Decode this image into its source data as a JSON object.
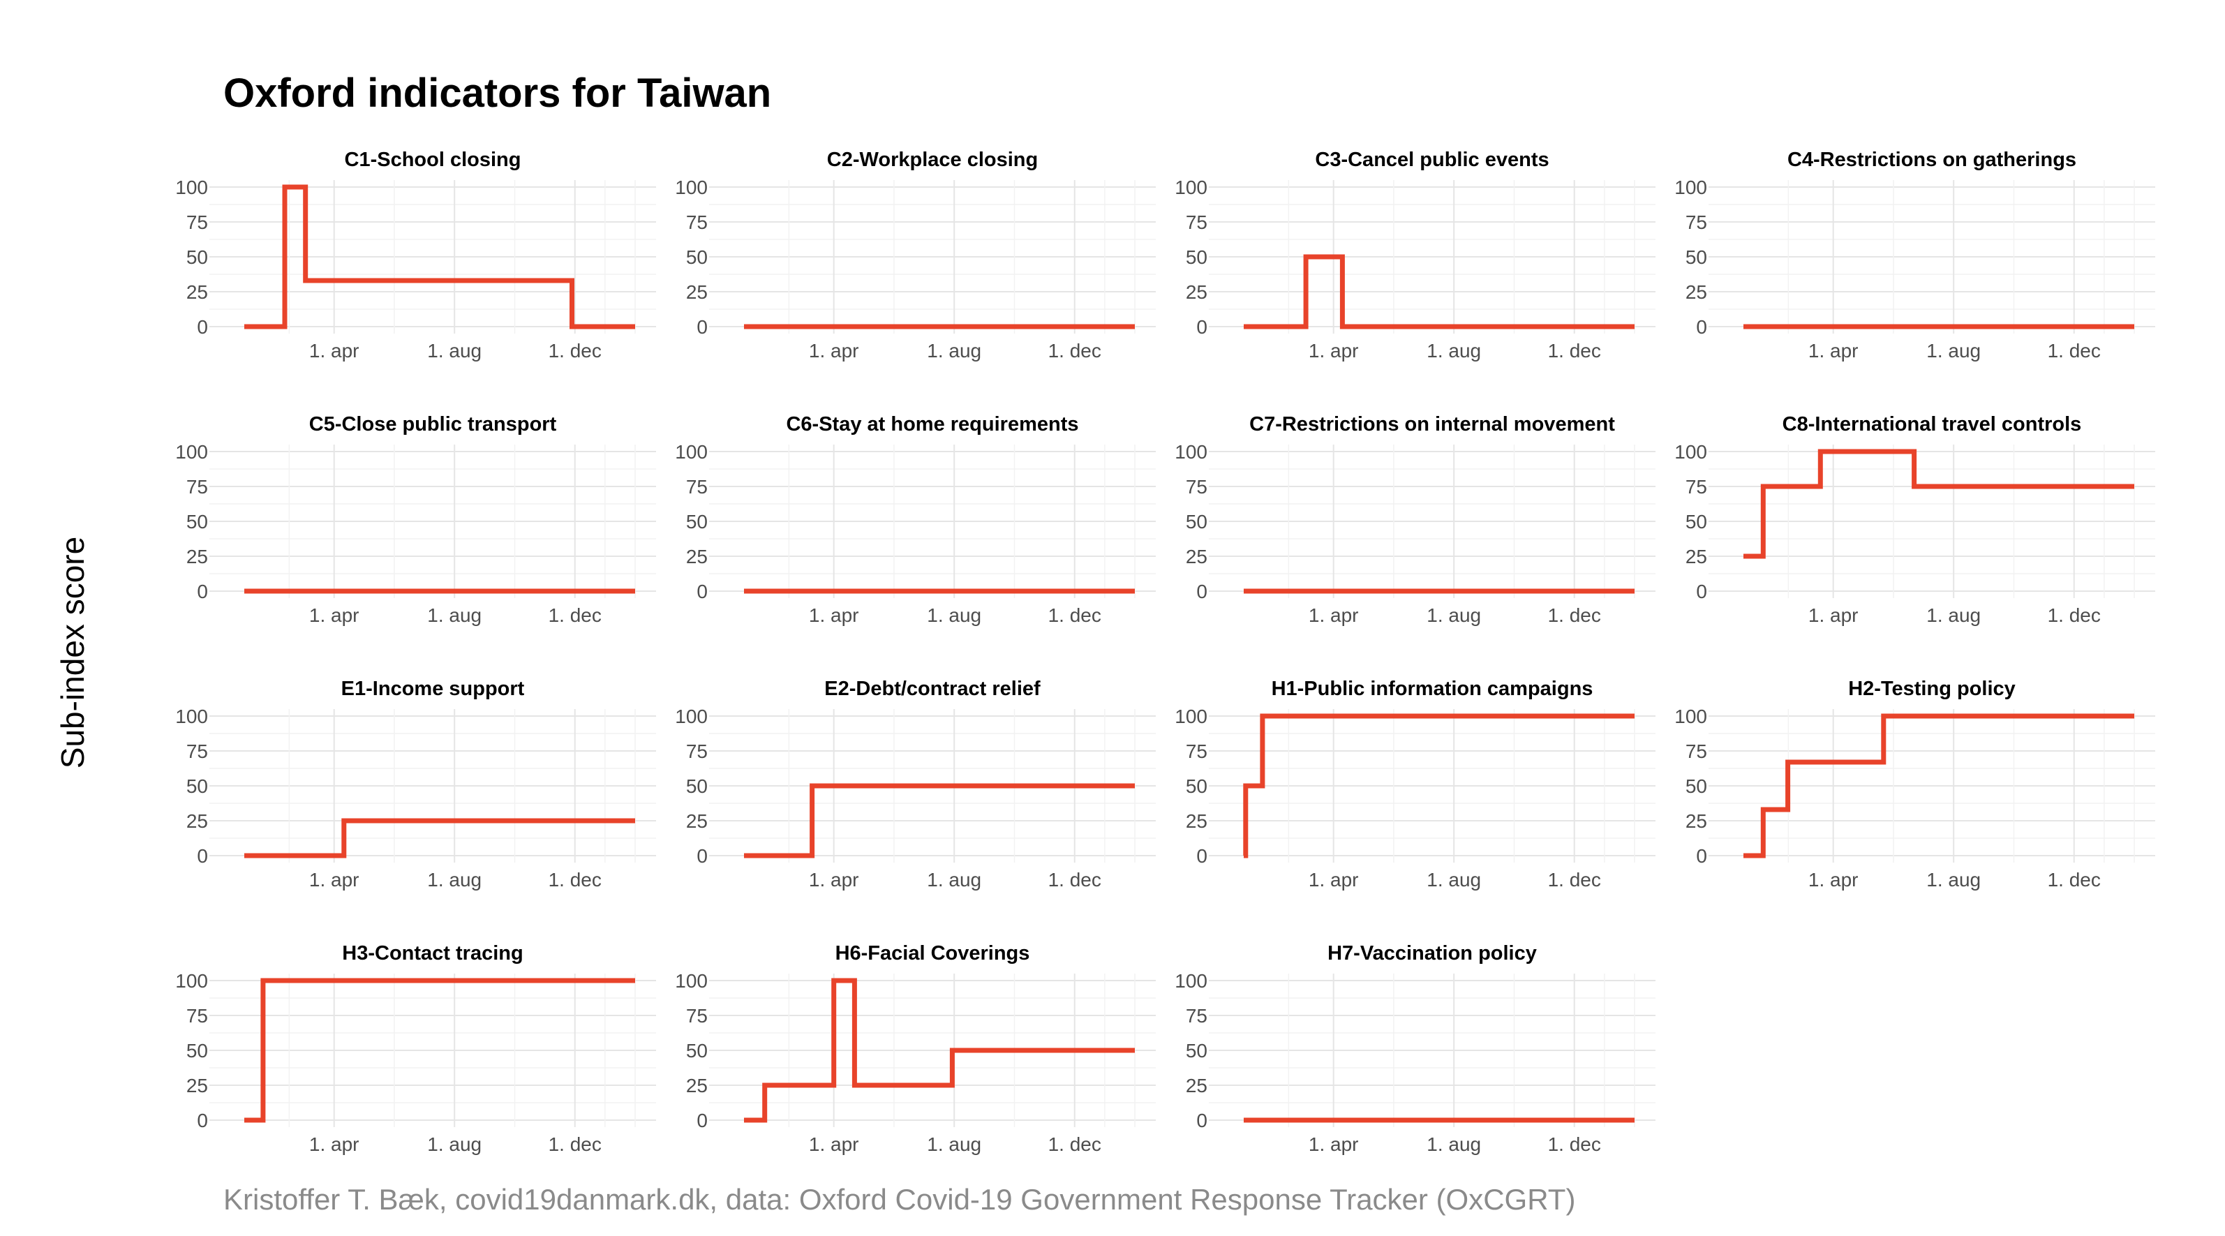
{
  "title": "Oxford indicators for Taiwan",
  "ylabel": "Sub-index score",
  "caption": "Kristoffer T. Bæk, covid19danmark.dk, data: Oxford Covid-19 Government Response Tracker (OxCGRT)",
  "colors": {
    "line": "#e8432a",
    "grid": "#e5e5e5",
    "tick_text": "#4d4d4d",
    "caption": "#8a8a8a"
  },
  "chart_data": {
    "type": "line",
    "facets": true,
    "x_axis": {
      "start": "2020-01-01",
      "end": "2021-01-31",
      "tick_labels": [
        "1. apr",
        "1. aug",
        "1. dec"
      ],
      "tick_dates": [
        "2020-04-01",
        "2020-08-01",
        "2020-12-01"
      ]
    },
    "y_axis": {
      "ylim": [
        0,
        100
      ],
      "ticks": [
        0,
        25,
        50,
        75,
        100
      ]
    },
    "grid": true,
    "panels": [
      {
        "name": "C1-School closing",
        "steps": [
          [
            "2020-01-01",
            0
          ],
          [
            "2020-02-11",
            100
          ],
          [
            "2020-03-03",
            33
          ],
          [
            "2020-11-28",
            0
          ],
          [
            "2021-01-31",
            0
          ]
        ]
      },
      {
        "name": "C2-Workplace closing",
        "steps": [
          [
            "2020-01-01",
            0
          ],
          [
            "2021-01-31",
            0
          ]
        ]
      },
      {
        "name": "C3-Cancel public events",
        "steps": [
          [
            "2020-01-01",
            0
          ],
          [
            "2020-03-04",
            50
          ],
          [
            "2020-04-10",
            0
          ],
          [
            "2021-01-31",
            0
          ]
        ]
      },
      {
        "name": "C4-Restrictions on gatherings",
        "steps": [
          [
            "2020-01-01",
            0
          ],
          [
            "2021-01-31",
            0
          ]
        ]
      },
      {
        "name": "C5-Close public transport",
        "steps": [
          [
            "2020-01-01",
            0
          ],
          [
            "2021-01-31",
            0
          ]
        ]
      },
      {
        "name": "C6-Stay at home requirements",
        "steps": [
          [
            "2020-01-01",
            0
          ],
          [
            "2021-01-31",
            0
          ]
        ]
      },
      {
        "name": "C7-Restrictions on internal movement",
        "steps": [
          [
            "2020-01-01",
            0
          ],
          [
            "2021-01-31",
            0
          ]
        ]
      },
      {
        "name": "C8-International travel controls",
        "steps": [
          [
            "2020-01-01",
            25
          ],
          [
            "2020-01-21",
            75
          ],
          [
            "2020-03-19",
            100
          ],
          [
            "2020-06-22",
            75
          ],
          [
            "2021-01-31",
            75
          ]
        ]
      },
      {
        "name": "E1-Income support",
        "steps": [
          [
            "2020-01-01",
            0
          ],
          [
            "2020-04-11",
            25
          ],
          [
            "2021-01-31",
            25
          ]
        ]
      },
      {
        "name": "E2-Debt/contract relief",
        "steps": [
          [
            "2020-01-01",
            0
          ],
          [
            "2020-03-10",
            50
          ],
          [
            "2021-01-31",
            50
          ]
        ]
      },
      {
        "name": "H1-Public information campaigns",
        "steps": [
          [
            "2020-01-01",
            0
          ],
          [
            "2020-01-03",
            50
          ],
          [
            "2020-01-20",
            100
          ],
          [
            "2021-01-31",
            100
          ]
        ]
      },
      {
        "name": "H2-Testing policy",
        "steps": [
          [
            "2020-01-01",
            0
          ],
          [
            "2020-01-21",
            33
          ],
          [
            "2020-02-15",
            67
          ],
          [
            "2020-05-22",
            100
          ],
          [
            "2021-01-31",
            100
          ]
        ]
      },
      {
        "name": "H3-Contact tracing",
        "steps": [
          [
            "2020-01-01",
            0
          ],
          [
            "2020-01-20",
            100
          ],
          [
            "2021-01-31",
            100
          ]
        ]
      },
      {
        "name": "H6-Facial Coverings",
        "steps": [
          [
            "2020-01-01",
            0
          ],
          [
            "2020-01-22",
            25
          ],
          [
            "2020-04-01",
            100
          ],
          [
            "2020-04-22",
            25
          ],
          [
            "2020-07-30",
            50
          ],
          [
            "2021-01-31",
            50
          ]
        ]
      },
      {
        "name": "H7-Vaccination policy",
        "steps": [
          [
            "2020-01-01",
            0
          ],
          [
            "2021-01-31",
            0
          ]
        ]
      }
    ]
  }
}
